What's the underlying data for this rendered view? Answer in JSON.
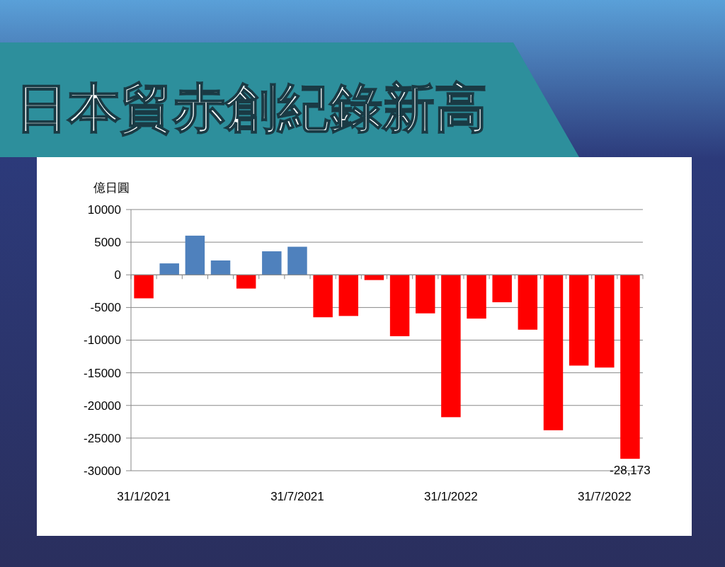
{
  "chart_data": {
    "type": "bar",
    "title": "日本貿赤創紀錄新高",
    "ylabel": "億日圓",
    "categories": [
      "31/1/2021",
      null,
      null,
      null,
      null,
      null,
      "31/7/2021",
      null,
      null,
      null,
      null,
      null,
      "31/1/2022",
      null,
      null,
      null,
      null,
      null,
      "31/7/2022",
      null
    ],
    "values": [
      -3600,
      1750,
      6000,
      2200,
      -2100,
      3600,
      4300,
      -6500,
      -6300,
      -800,
      -9400,
      -5900,
      -21800,
      -6700,
      -4200,
      -8400,
      -23800,
      -13900,
      -14200,
      -28173
    ],
    "colors": [
      "#ff0000",
      "#4f81bd",
      "#4f81bd",
      "#4f81bd",
      "#ff0000",
      "#4f81bd",
      "#4f81bd",
      "#ff0000",
      "#ff0000",
      "#ff0000",
      "#ff0000",
      "#ff0000",
      "#ff0000",
      "#ff0000",
      "#ff0000",
      "#ff0000",
      "#ff0000",
      "#ff0000",
      "#ff0000",
      "#ff0000"
    ],
    "value_labels": [
      null,
      null,
      null,
      null,
      null,
      null,
      null,
      null,
      null,
      null,
      null,
      null,
      null,
      null,
      null,
      null,
      null,
      null,
      null,
      "-28,173"
    ],
    "ylim": [
      -30000,
      10000
    ],
    "yticks": [
      -30000,
      -25000,
      -20000,
      -15000,
      -10000,
      -5000,
      0,
      5000,
      10000
    ],
    "grid": "y"
  }
}
